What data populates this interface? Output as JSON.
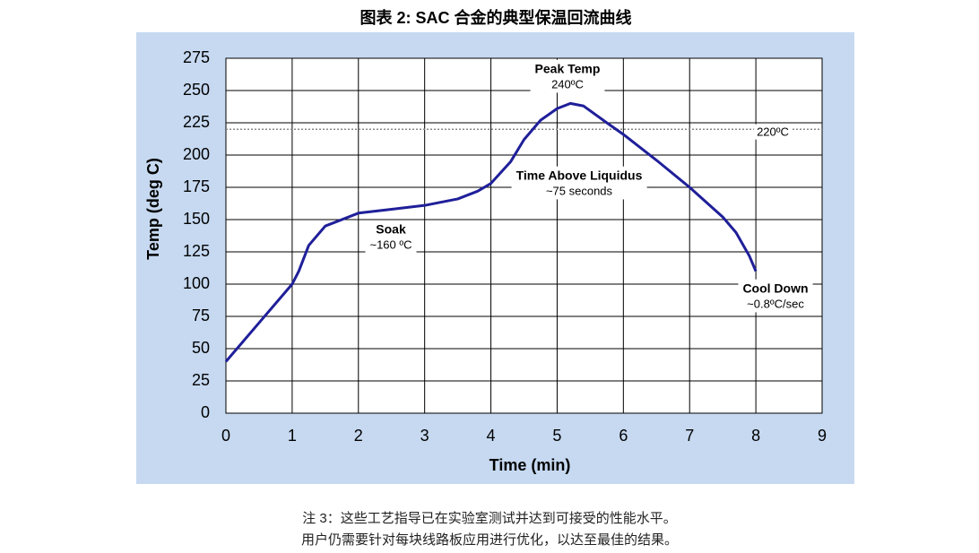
{
  "chart_data": {
    "type": "line",
    "title": "图表 2: SAC 合金的典型保温回流曲线",
    "x_label": "Time (min)",
    "y_label": "Temp (deg C)",
    "x": [
      0,
      0.5,
      1,
      1.1,
      1.25,
      1.5,
      2,
      2.5,
      3,
      3.5,
      3.8,
      4,
      4.3,
      4.5,
      4.75,
      5,
      5.2,
      5.4,
      5.75,
      6,
      6.5,
      7,
      7.5,
      7.7,
      7.9,
      8
    ],
    "values": [
      40,
      70,
      100,
      110,
      130,
      145,
      155,
      158,
      161,
      166,
      172,
      178,
      195,
      212,
      227,
      236,
      240,
      238,
      225,
      216,
      196,
      175,
      152,
      140,
      122,
      110
    ],
    "color": "#1f1f9a",
    "xlim": [
      0,
      9
    ],
    "xticks": [
      0,
      1,
      2,
      3,
      4,
      5,
      6,
      7,
      8,
      9
    ],
    "ylim": [
      0,
      275
    ],
    "yticks": [
      0,
      25,
      50,
      75,
      100,
      125,
      150,
      175,
      200,
      225,
      250,
      275
    ],
    "grid": true,
    "reference_line": {
      "value": 220,
      "label": "220ºC"
    },
    "annotations": [
      {
        "title": "Peak Temp",
        "text": "240ºC"
      },
      {
        "title": "Time Above Liquidus",
        "text": "~75 seconds"
      },
      {
        "title": "Soak",
        "text": "~160 ºC"
      },
      {
        "title": "Cool Down",
        "text": "~0.8ºC/sec"
      }
    ]
  },
  "notes": [
    "注 3：这些工艺指导已在实验室测试并达到可接受的性能水平。",
    "用户仍需要针对每块线路板应用进行优化，以达至最佳的结果。"
  ]
}
